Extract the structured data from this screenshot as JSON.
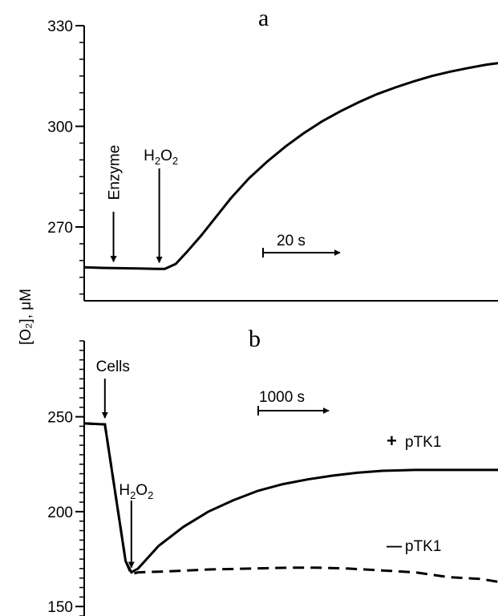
{
  "figure": {
    "ylabel": "[O₂], μM"
  },
  "chart_data": [
    {
      "type": "line",
      "panel": "a",
      "ylim": [
        248,
        330
      ],
      "xlim": [
        0,
        113
      ],
      "yticks": [
        270,
        300,
        330
      ],
      "series": [
        {
          "style": "solid",
          "x": [
            0,
            5,
            10,
            15,
            20,
            22,
            25,
            28,
            32,
            36,
            40,
            45,
            50,
            55,
            60,
            65,
            70,
            75,
            80,
            85,
            90,
            95,
            100,
            105,
            110,
            113
          ],
          "y": [
            258,
            257.8,
            257.7,
            257.6,
            257.5,
            257.5,
            259,
            262.5,
            267.5,
            273,
            278.5,
            284.5,
            289.5,
            294,
            298,
            301.5,
            304.5,
            307.2,
            309.6,
            311.6,
            313.4,
            315,
            316.3,
            317.4,
            318.4,
            318.8
          ]
        }
      ],
      "annotations": [
        {
          "label": "Enzyme",
          "x": 8
        },
        {
          "label": "H",
          "sub1": "2",
          "mid": "O",
          "sub2": "2",
          "x": 20.5
        }
      ],
      "scale_bar": {
        "label": "20 s"
      }
    },
    {
      "type": "line",
      "panel": "b",
      "ylim": [
        145,
        290
      ],
      "xlim": [
        0,
        5000
      ],
      "yticks": [
        150,
        200,
        250
      ],
      "series": [
        {
          "name": "+ pTK1",
          "style": "solid",
          "x": [
            0,
            250,
            500,
            570,
            650,
            900,
            1200,
            1500,
            1800,
            2100,
            2400,
            2700,
            3000,
            3300,
            3600,
            4000,
            4400,
            4800,
            5000
          ],
          "y": [
            246.5,
            246,
            174,
            168,
            170,
            182,
            192,
            200,
            206,
            211,
            214.5,
            217,
            219,
            220.5,
            221.5,
            222,
            222,
            222,
            222
          ]
        },
        {
          "name": "− pTK1",
          "style": "dashed",
          "x": [
            0,
            250,
            500,
            570,
            650,
            1000,
            1500,
            2000,
            2500,
            2800,
            3200,
            3600,
            4000,
            4400,
            4800,
            5000
          ],
          "y": [
            246.5,
            246,
            174,
            167,
            168,
            168.5,
            169.5,
            170,
            170.5,
            170.5,
            170,
            169,
            168,
            165.5,
            164.5,
            163
          ]
        }
      ],
      "annotations": [
        {
          "label": "Cells",
          "x": 250
        },
        {
          "label": "H",
          "sub1": "2",
          "mid": "O",
          "sub2": "2",
          "x": 570
        }
      ],
      "scale_bar": {
        "label": "1000 s"
      },
      "legend": {
        "plus": "+",
        "minus": "—",
        "name": "pTK1"
      }
    }
  ]
}
